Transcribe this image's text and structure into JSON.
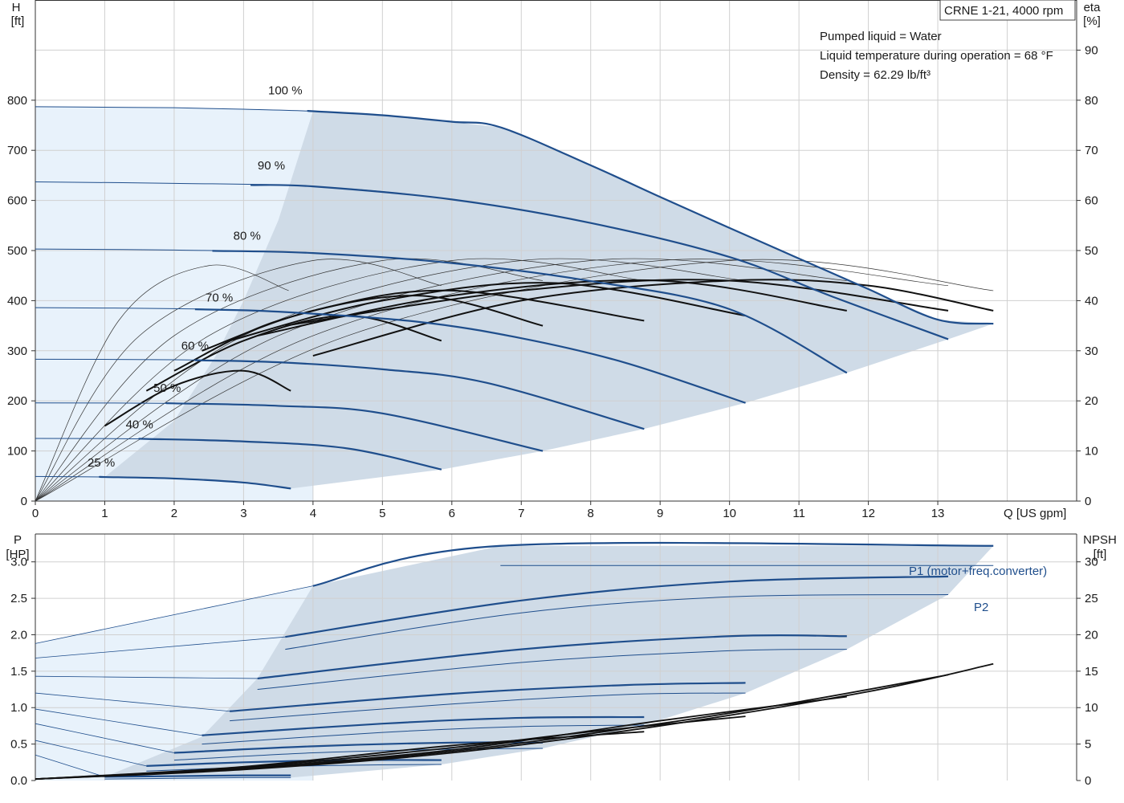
{
  "chart_data": [
    {
      "type": "line",
      "model_label": "CRNE 1-21, 4000 rpm",
      "info_lines": [
        "Pumped liquid = Water",
        "Liquid temperature during operation = 68 °F",
        "Density = 62.29 lb/ft³"
      ],
      "x_axis": {
        "label": "Q [US gpm]",
        "ticks": [
          "0",
          "1",
          "2",
          "3",
          "4",
          "5",
          "6",
          "7",
          "8",
          "9",
          "10",
          "11",
          "12",
          "13"
        ],
        "range": [
          0,
          15
        ]
      },
      "y_left": {
        "label_1": "H",
        "label_2": "[ft]",
        "ticks": [
          "0",
          "100",
          "200",
          "300",
          "400",
          "500",
          "600",
          "700",
          "800"
        ],
        "range": [
          0,
          1000
        ]
      },
      "y_right": {
        "label_1": "eta",
        "label_2": "[%]",
        "ticks": [
          "0",
          "10",
          "20",
          "30",
          "40",
          "50",
          "60",
          "70",
          "80",
          "90"
        ],
        "range": [
          0,
          100
        ]
      },
      "grid": true,
      "colors": {
        "curve": "#1f4e8c",
        "eta": "#111111",
        "region": "#cfdbe7",
        "region_light": "#e8f2fb",
        "grid": "#d0d0d0"
      },
      "speed_curves": [
        {
          "label": "100 %",
          "points": [
            [
              0,
              787
            ],
            [
              1,
              786
            ],
            [
              2,
              785
            ],
            [
              3,
              782
            ],
            [
              4,
              778
            ],
            [
              5,
              770
            ],
            [
              6,
              757
            ],
            [
              6.7,
              746
            ],
            [
              8,
              670
            ],
            [
              9,
              607
            ],
            [
              10,
              545
            ],
            [
              11,
              484
            ],
            [
              12,
              423
            ],
            [
              13,
              362
            ],
            [
              13.8,
              354
            ]
          ]
        },
        {
          "label": "90 %",
          "points": [
            [
              0,
              637
            ],
            [
              2,
              634
            ],
            [
              4,
              628
            ],
            [
              6,
              602
            ],
            [
              8,
              555
            ],
            [
              10,
              487
            ],
            [
              11.5,
              407
            ],
            [
              13.15,
              323
            ]
          ]
        },
        {
          "label": "80 %",
          "points": [
            [
              0,
              503
            ],
            [
              2,
              501
            ],
            [
              4,
              495
            ],
            [
              6,
              475
            ],
            [
              8,
              439
            ],
            [
              10,
              383
            ],
            [
              11.69,
              256
            ]
          ]
        },
        {
          "label": "70 %",
          "points": [
            [
              0,
              386
            ],
            [
              2,
              384
            ],
            [
              3.5,
              378
            ],
            [
              5.5,
              358
            ],
            [
              7,
              325
            ],
            [
              8.5,
              276
            ],
            [
              10.23,
              196
            ]
          ]
        },
        {
          "label": "60 %",
          "points": [
            [
              0,
              283
            ],
            [
              2,
              282
            ],
            [
              3.5,
              277
            ],
            [
              5,
              263
            ],
            [
              6.5,
              236
            ],
            [
              8.77,
              144
            ]
          ]
        },
        {
          "label": "50 %",
          "points": [
            [
              0,
              196
            ],
            [
              2,
              195
            ],
            [
              3.5,
              190
            ],
            [
              5,
              175
            ],
            [
              7.31,
              100
            ]
          ]
        },
        {
          "label": "40 %",
          "points": [
            [
              0,
              125
            ],
            [
              1.6,
              124
            ],
            [
              3,
              119
            ],
            [
              4.5,
              105
            ],
            [
              5.85,
              63
            ]
          ]
        },
        {
          "label": "25 %",
          "points": [
            [
              0,
              49
            ],
            [
              1,
              48
            ],
            [
              2,
              45
            ],
            [
              3,
              37
            ],
            [
              3.68,
              25
            ]
          ]
        }
      ],
      "eta_curves": [
        {
          "points": [
            [
              1,
              15
            ],
            [
              2,
              23
            ],
            [
              3,
              26
            ],
            [
              3.68,
              22
            ]
          ]
        },
        {
          "points": [
            [
              1.6,
              22
            ],
            [
              3,
              32
            ],
            [
              4.5,
              37
            ],
            [
              5.85,
              32
            ]
          ]
        },
        {
          "points": [
            [
              2,
              26
            ],
            [
              3.5,
              36
            ],
            [
              5.5,
              41
            ],
            [
              7.31,
              35
            ]
          ]
        },
        {
          "points": [
            [
              2.4,
              30
            ],
            [
              4,
              38
            ],
            [
              6,
              42
            ],
            [
              8.77,
              36
            ]
          ]
        },
        {
          "points": [
            [
              2.8,
              32
            ],
            [
              5,
              40
            ],
            [
              7.5,
              43.5
            ],
            [
              10.23,
              37
            ]
          ]
        },
        {
          "points": [
            [
              3.2,
              33
            ],
            [
              6,
              41
            ],
            [
              9,
              44
            ],
            [
              11.69,
              38
            ]
          ]
        },
        {
          "points": [
            [
              3.6,
              35
            ],
            [
              7,
              42
            ],
            [
              10,
              44
            ],
            [
              13.15,
              38
            ]
          ]
        },
        {
          "points": [
            [
              4,
              29
            ],
            [
              7,
              40
            ],
            [
              10,
              44
            ],
            [
              12,
              43
            ],
            [
              13.8,
              38
            ]
          ]
        }
      ],
      "peak_eta_thin": [
        {
          "points": [
            [
              0,
              0
            ],
            [
              1.2,
              36
            ],
            [
              2.5,
              47
            ],
            [
              3.65,
              42
            ]
          ]
        },
        {
          "points": [
            [
              0,
              0
            ],
            [
              1.5,
              33
            ],
            [
              4,
              48
            ],
            [
              5.85,
              43
            ]
          ]
        },
        {
          "points": [
            [
              0,
              0
            ],
            [
              2,
              33
            ],
            [
              5,
              48
            ],
            [
              7.31,
              44
            ]
          ]
        },
        {
          "points": [
            [
              0,
              0
            ],
            [
              2.5,
              33
            ],
            [
              6,
              48
            ],
            [
              8.77,
              44
            ]
          ]
        },
        {
          "points": [
            [
              0,
              0
            ],
            [
              3,
              33
            ],
            [
              7,
              48
            ],
            [
              10.23,
              44
            ]
          ]
        },
        {
          "points": [
            [
              0,
              0
            ],
            [
              3.5,
              33
            ],
            [
              8,
              48
            ],
            [
              11.69,
              44
            ]
          ]
        },
        {
          "points": [
            [
              0,
              0
            ],
            [
              4,
              33
            ],
            [
              9,
              48
            ],
            [
              13.15,
              43
            ]
          ]
        },
        {
          "points": [
            [
              0,
              0
            ],
            [
              4.5,
              33
            ],
            [
              10,
              48
            ],
            [
              13.8,
              42
            ]
          ]
        }
      ]
    },
    {
      "type": "line",
      "x_axis": {
        "range": [
          0,
          15
        ]
      },
      "y_left": {
        "label_1": "P",
        "label_2": "[HP]",
        "ticks": [
          "0.0",
          "0.5",
          "1.0",
          "1.5",
          "2.0",
          "2.5",
          "3.0"
        ],
        "range": [
          0,
          3.25
        ]
      },
      "y_right": {
        "label_1": "NPSH",
        "label_2": "[ft]",
        "ticks": [
          "0",
          "5",
          "10",
          "15",
          "20",
          "25",
          "30"
        ],
        "range": [
          0,
          32.5
        ]
      },
      "series_labels": {
        "p1": "P1 (motor+freq.converter)",
        "p2": "P2"
      },
      "p1_curves": [
        {
          "points": [
            [
              4,
              2.67
            ],
            [
              6.7,
              3.22
            ],
            [
              13.8,
              3.22
            ]
          ]
        },
        {
          "points": [
            [
              3.6,
              1.97
            ],
            [
              7,
              2.47
            ],
            [
              10,
              2.73
            ],
            [
              13.15,
              2.8
            ]
          ]
        },
        {
          "points": [
            [
              3.2,
              1.4
            ],
            [
              7,
              1.8
            ],
            [
              10,
              1.98
            ],
            [
              11.69,
              1.98
            ]
          ]
        },
        {
          "points": [
            [
              2.8,
              0.95
            ],
            [
              6,
              1.19
            ],
            [
              8.5,
              1.31
            ],
            [
              10.23,
              1.34
            ]
          ]
        },
        {
          "points": [
            [
              2.4,
              0.62
            ],
            [
              5,
              0.78
            ],
            [
              7,
              0.86
            ],
            [
              8.77,
              0.87
            ]
          ]
        },
        {
          "points": [
            [
              2,
              0.38
            ],
            [
              4,
              0.47
            ],
            [
              6,
              0.52
            ],
            [
              7.31,
              0.52
            ]
          ]
        },
        {
          "points": [
            [
              1.6,
              0.2
            ],
            [
              3,
              0.25
            ],
            [
              4.5,
              0.28
            ],
            [
              5.85,
              0.28
            ]
          ]
        },
        {
          "points": [
            [
              1,
              0.05
            ],
            [
              2,
              0.06
            ],
            [
              3,
              0.07
            ],
            [
              3.68,
              0.07
            ]
          ]
        }
      ],
      "p2_curves": [
        {
          "points": [
            [
              6.7,
              2.95
            ],
            [
              13.8,
              2.95
            ]
          ]
        },
        {
          "points": [
            [
              3.6,
              1.8
            ],
            [
              7,
              2.3
            ],
            [
              10,
              2.52
            ],
            [
              13.15,
              2.55
            ]
          ]
        },
        {
          "points": [
            [
              3.2,
              1.25
            ],
            [
              7,
              1.62
            ],
            [
              10,
              1.78
            ],
            [
              11.69,
              1.8
            ]
          ]
        },
        {
          "points": [
            [
              2.8,
              0.82
            ],
            [
              6,
              1.05
            ],
            [
              8.5,
              1.18
            ],
            [
              10.23,
              1.2
            ]
          ]
        },
        {
          "points": [
            [
              2.4,
              0.5
            ],
            [
              5,
              0.66
            ],
            [
              7,
              0.74
            ],
            [
              8.77,
              0.76
            ]
          ]
        },
        {
          "points": [
            [
              2,
              0.28
            ],
            [
              4,
              0.38
            ],
            [
              6,
              0.43
            ],
            [
              7.31,
              0.44
            ]
          ]
        },
        {
          "points": [
            [
              1.6,
              0.13
            ],
            [
              3,
              0.18
            ],
            [
              4.5,
              0.21
            ],
            [
              5.85,
              0.22
            ]
          ]
        },
        {
          "points": [
            [
              1,
              0.02
            ],
            [
              2,
              0.03
            ],
            [
              3,
              0.04
            ],
            [
              3.68,
              0.04
            ]
          ]
        }
      ],
      "npsh_curves": [
        {
          "points": [
            [
              0,
              0.2
            ],
            [
              3,
              1.5
            ],
            [
              6,
              3.8
            ],
            [
              9,
              7.5
            ],
            [
              12,
              12.2
            ],
            [
              13.8,
              16
            ]
          ]
        },
        {
          "points": [
            [
              0,
              0.2
            ],
            [
              3,
              1.6
            ],
            [
              6,
              4
            ],
            [
              9,
              7.8
            ],
            [
              11,
              10.8
            ],
            [
              13.15,
              14.5
            ]
          ]
        },
        {
          "points": [
            [
              0,
              0.2
            ],
            [
              3,
              1.7
            ],
            [
              6,
              4.2
            ],
            [
              9,
              8.2
            ],
            [
              11.69,
              11.5
            ]
          ]
        },
        {
          "points": [
            [
              0,
              0.2
            ],
            [
              3,
              1.8
            ],
            [
              6,
              4.5
            ],
            [
              8,
              6.7
            ],
            [
              10.23,
              8.8
            ]
          ]
        },
        {
          "points": [
            [
              0,
              0.2
            ],
            [
              3,
              1.9
            ],
            [
              6,
              4.8
            ],
            [
              8.77,
              6.7
            ]
          ]
        }
      ]
    }
  ]
}
